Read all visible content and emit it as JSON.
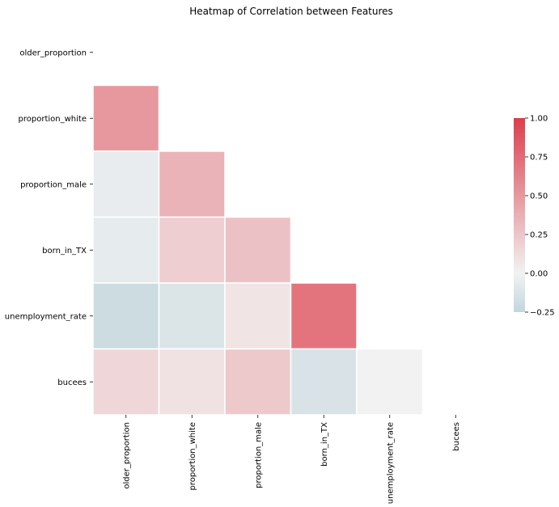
{
  "chart_data": {
    "type": "heatmap",
    "title": "Heatmap of Correlation between Features",
    "xlabel": "",
    "ylabel": "",
    "mask": "upper-triangle-including-diagonal",
    "row_labels": [
      "older_proportion",
      "proportion_white",
      "proportion_male",
      "born_in_TX",
      "unemployment_rate",
      "bucees"
    ],
    "col_labels": [
      "older_proportion",
      "proportion_white",
      "proportion_male",
      "born_in_TX",
      "unemployment_rate",
      "bucees"
    ],
    "values": [
      [
        null,
        null,
        null,
        null,
        null,
        null
      ],
      [
        0.5,
        null,
        null,
        null,
        null,
        null
      ],
      [
        -0.05,
        0.35,
        null,
        null,
        null,
        null
      ],
      [
        -0.06,
        0.2,
        0.27,
        null,
        null,
        null
      ],
      [
        -0.2,
        -0.12,
        0.08,
        0.7,
        null,
        null
      ],
      [
        0.15,
        0.09,
        0.23,
        -0.13,
        0.0,
        null
      ]
    ],
    "colorbar": {
      "vmin": -0.25,
      "vmax": 1.0,
      "ticks": [
        1.0,
        0.75,
        0.5,
        0.25,
        0.0,
        -0.25
      ],
      "tick_labels": [
        "1.00",
        "0.75",
        "0.50",
        "0.25",
        "0.00",
        "−0.25"
      ],
      "colors": {
        "negative": "#c2d6dd",
        "zero": "#f2f2f2",
        "positive": "#dc3e4c"
      }
    }
  }
}
